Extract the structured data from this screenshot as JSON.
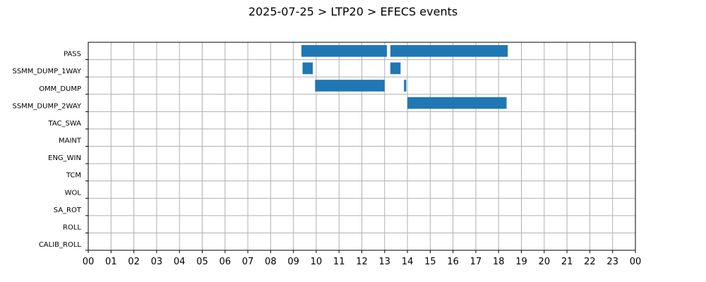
{
  "chart_data": {
    "type": "bar",
    "orientation": "horizontal",
    "title": "2025-07-25 > LTP20 > EFECS events",
    "xlabel": "",
    "ylabel": "",
    "xlim": [
      0,
      24
    ],
    "x_tick_labels": [
      "00",
      "01",
      "02",
      "03",
      "04",
      "05",
      "06",
      "07",
      "08",
      "09",
      "10",
      "11",
      "12",
      "13",
      "14",
      "15",
      "16",
      "17",
      "18",
      "19",
      "20",
      "21",
      "22",
      "23",
      "00"
    ],
    "categories": [
      "PASS",
      "SSMM_DUMP_1WAY",
      "OMM_DUMP",
      "SSMM_DUMP_2WAY",
      "TAC_SWA",
      "MAINT",
      "ENG_WIN",
      "TCM",
      "WOL",
      "SA_ROT",
      "ROLL",
      "CALIB_ROLL"
    ],
    "grid": true,
    "bar_color": "#1f77b4",
    "events": [
      {
        "category": "PASS",
        "start": 9.35,
        "end": 13.1
      },
      {
        "category": "PASS",
        "start": 13.25,
        "end": 18.4
      },
      {
        "category": "SSMM_DUMP_1WAY",
        "start": 9.4,
        "end": 9.85
      },
      {
        "category": "SSMM_DUMP_1WAY",
        "start": 13.25,
        "end": 13.7
      },
      {
        "category": "OMM_DUMP",
        "start": 9.95,
        "end": 13.0
      },
      {
        "category": "OMM_DUMP",
        "start": 13.85,
        "end": 13.95
      },
      {
        "category": "SSMM_DUMP_2WAY",
        "start": 14.0,
        "end": 18.35
      }
    ]
  }
}
